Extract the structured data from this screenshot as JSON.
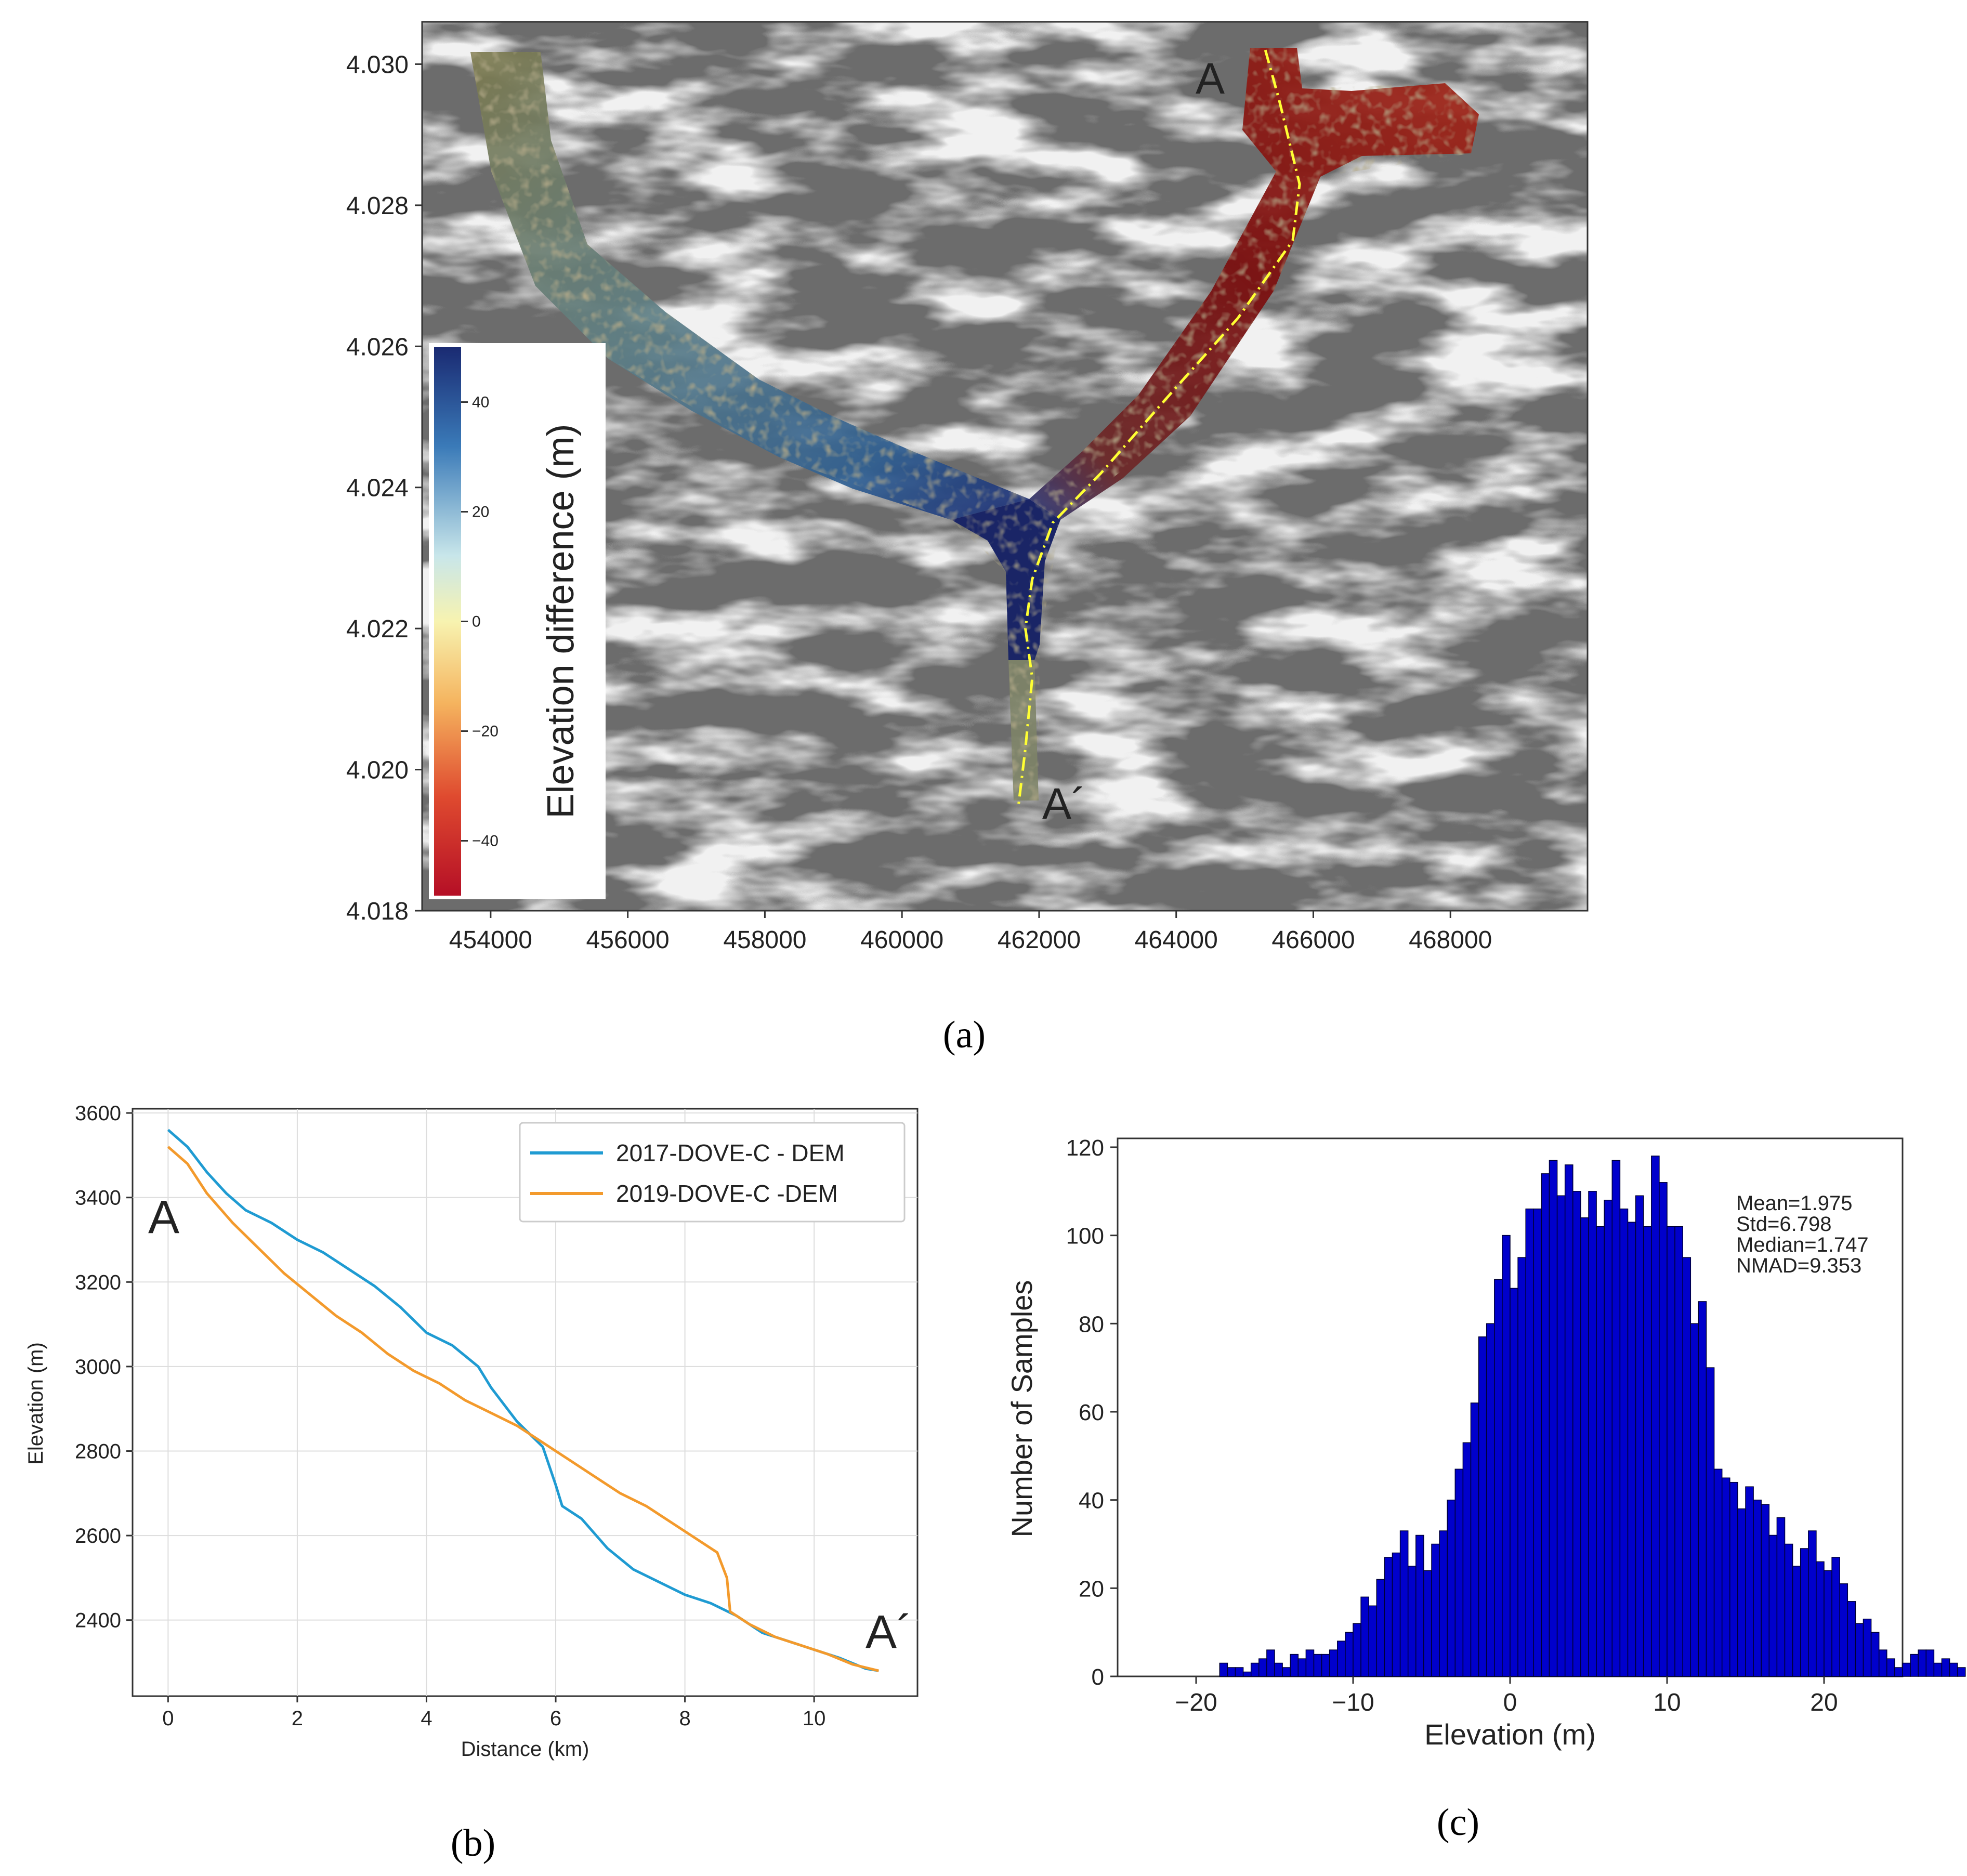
{
  "chart_data": [
    {
      "type": "heatmap",
      "panel": "(a)",
      "panel_label": "(a)",
      "x_ticks": [
        454000,
        456000,
        458000,
        460000,
        462000,
        464000,
        466000,
        468000
      ],
      "x_tick_labels": [
        "454000",
        "456000",
        "458000",
        "460000",
        "462000",
        "464000",
        "466000",
        "468000"
      ],
      "xlim": [
        453000,
        470000
      ],
      "y_ticks": [
        4.018,
        4.02,
        4.022,
        4.024,
        4.026,
        4.028,
        4.03
      ],
      "y_tick_labels": [
        "4.018",
        "4.020",
        "4.022",
        "4.024",
        "4.026",
        "4.028",
        "4.030"
      ],
      "ylim": [
        4.018,
        4.0306
      ],
      "colorbar": {
        "label": "Elevation difference (m)",
        "range": [
          -50,
          50
        ],
        "ticks": [
          40,
          20,
          0,
          -20,
          -40
        ],
        "tick_labels": [
          "40",
          "20",
          "0",
          "−20",
          "−40"
        ],
        "colors": [
          "#1a2a72",
          "#3a7ab8",
          "#c8e6ea",
          "#f7f3b0",
          "#f5b35e",
          "#df4a2f",
          "#b50f26"
        ]
      },
      "profile_labels": {
        "start": "A",
        "end": "A´"
      },
      "profile_color": "#ffff33",
      "profile_x": [
        465300,
        465500,
        465800,
        465700,
        464900,
        463800,
        462900,
        462200,
        461900,
        461800,
        461900,
        461800,
        461700
      ],
      "profile_y": [
        4.0302,
        4.0295,
        4.0283,
        4.0275,
        4.0264,
        4.0252,
        4.0242,
        4.0235,
        4.0227,
        4.022,
        4.0213,
        4.0203,
        4.0195
      ]
    },
    {
      "type": "line",
      "panel": "(b)",
      "panel_label": "(b)",
      "xlabel": "Distance (km)",
      "ylabel": "Elevation (m)",
      "xlim": [
        -0.55,
        11.6
      ],
      "ylim": [
        2220,
        3610
      ],
      "x_ticks": [
        0,
        2,
        4,
        6,
        8,
        10
      ],
      "x_tick_labels": [
        "0",
        "2",
        "4",
        "6",
        "8",
        "10"
      ],
      "y_ticks": [
        2400,
        2600,
        2800,
        3000,
        3200,
        3400,
        3600
      ],
      "y_tick_labels": [
        "2400",
        "2600",
        "2800",
        "3000",
        "3200",
        "3400",
        "3600"
      ],
      "grid": true,
      "legend_position": "top-right",
      "start_label": "A",
      "end_label": "A´",
      "series": [
        {
          "name": "2017-DOVE-C - DEM",
          "color": "#1f9bd2",
          "x": [
            0,
            0.3,
            0.6,
            0.9,
            1.2,
            1.6,
            2.0,
            2.4,
            2.8,
            3.2,
            3.6,
            4.0,
            4.4,
            4.8,
            5.0,
            5.4,
            5.8,
            6.0,
            6.1,
            6.4,
            6.8,
            7.2,
            7.6,
            8.0,
            8.4,
            8.8,
            9.2,
            9.6,
            10.0,
            10.4,
            10.8,
            11.0
          ],
          "y": [
            3560,
            3520,
            3460,
            3410,
            3370,
            3340,
            3300,
            3270,
            3230,
            3190,
            3140,
            3080,
            3050,
            3000,
            2950,
            2870,
            2810,
            2720,
            2670,
            2640,
            2570,
            2520,
            2490,
            2460,
            2440,
            2410,
            2370,
            2350,
            2330,
            2310,
            2285,
            2280
          ]
        },
        {
          "name": "2019-DOVE-C -DEM",
          "color": "#f39a2c",
          "x": [
            0,
            0.3,
            0.6,
            1.0,
            1.4,
            1.8,
            2.2,
            2.6,
            3.0,
            3.4,
            3.8,
            4.2,
            4.6,
            5.0,
            5.4,
            5.8,
            6.2,
            6.6,
            7.0,
            7.4,
            7.8,
            8.2,
            8.5,
            8.65,
            8.7,
            9.0,
            9.4,
            9.8,
            10.2,
            10.6,
            11.0
          ],
          "y": [
            3520,
            3480,
            3410,
            3340,
            3280,
            3220,
            3170,
            3120,
            3080,
            3030,
            2990,
            2960,
            2920,
            2890,
            2860,
            2820,
            2780,
            2740,
            2700,
            2670,
            2630,
            2590,
            2560,
            2500,
            2420,
            2390,
            2360,
            2340,
            2320,
            2295,
            2280
          ]
        }
      ]
    },
    {
      "type": "bar",
      "panel": "(c)",
      "panel_label": "(c)",
      "subtype": "histogram",
      "xlabel": "Elevation (m)",
      "ylabel": "Number of Samples",
      "xlim": [
        -25,
        25
      ],
      "ylim": [
        0,
        122
      ],
      "x_ticks": [
        -20,
        -10,
        0,
        10,
        20
      ],
      "x_tick_labels": [
        "−20",
        "−10",
        "0",
        "10",
        "20"
      ],
      "y_ticks": [
        0,
        20,
        40,
        60,
        80,
        100,
        120
      ],
      "y_tick_labels": [
        "0",
        "20",
        "40",
        "60",
        "80",
        "100",
        "120"
      ],
      "bar_color": "#0000cc",
      "bin_start": -18.5,
      "bin_width": 0.5,
      "counts": [
        3,
        2,
        2,
        1,
        3,
        4,
        6,
        3,
        2,
        5,
        4,
        6,
        5,
        5,
        6,
        8,
        10,
        12,
        18,
        16,
        22,
        27,
        28,
        33,
        25,
        32,
        24,
        30,
        33,
        40,
        47,
        53,
        62,
        77,
        80,
        90,
        100,
        88,
        95,
        106,
        106,
        114,
        117,
        109,
        116,
        110,
        104,
        110,
        102,
        108,
        117,
        106,
        103,
        109,
        102,
        118,
        112,
        102,
        102,
        95,
        80,
        85,
        70,
        47,
        45,
        44,
        38,
        43,
        40,
        39,
        32,
        36,
        30,
        25,
        29,
        33,
        26,
        24,
        27,
        21,
        17,
        12,
        13,
        10,
        6,
        4,
        2,
        3,
        5,
        6,
        6,
        3,
        4,
        3,
        2
      ],
      "stats": [
        {
          "label": "Mean=1.975"
        },
        {
          "label": "Std=6.798"
        },
        {
          "label": "Median=1.747"
        },
        {
          "label": "NMAD=9.353"
        }
      ]
    }
  ]
}
